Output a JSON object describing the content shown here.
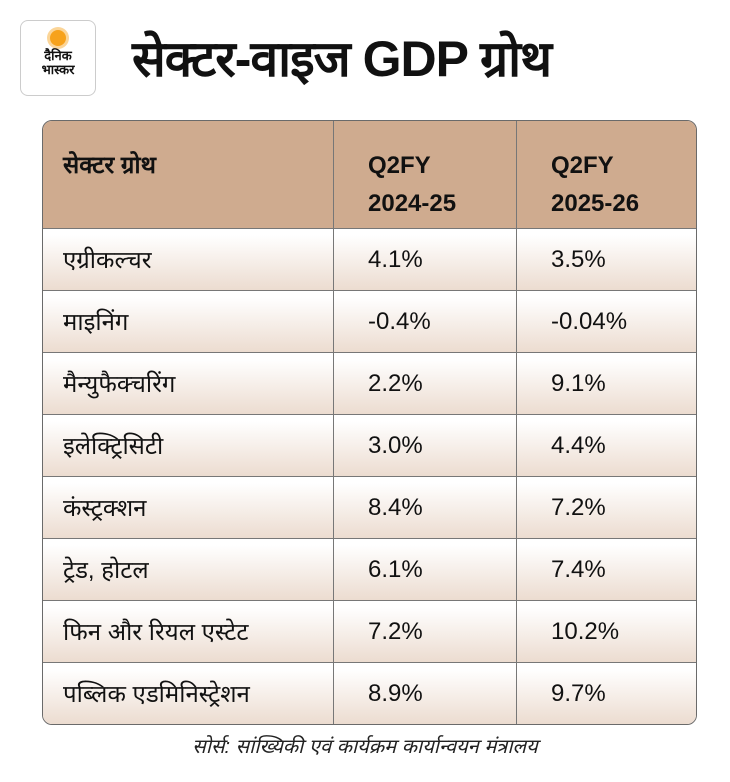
{
  "brand": {
    "logo_line1": "दैनिक",
    "logo_line2": "भास्कर",
    "accent": "#f7a21b"
  },
  "title": "सेक्टर-वाइज GDP ग्रोथ",
  "chart_data": {
    "type": "table",
    "title": "सेक्टर-वाइज GDP ग्रोथ",
    "columns": [
      {
        "line1": "सेक्टर ग्रोथ",
        "line2": ""
      },
      {
        "line1": "Q2FY",
        "line2": "2024-25"
      },
      {
        "line1": "Q2FY",
        "line2": "2025-26"
      }
    ],
    "rows": [
      {
        "sector": "एग्रीकल्चर",
        "fy25": "4.1%",
        "fy26": "3.5%"
      },
      {
        "sector": "माइनिंग",
        "fy25": "-0.4%",
        "fy26": "-0.04%"
      },
      {
        "sector": "मैन्युफैक्चरिंग",
        "fy25": "2.2%",
        "fy26": "9.1%"
      },
      {
        "sector": "इलेक्ट्रिसिटी",
        "fy25": "3.0%",
        "fy26": "4.4%"
      },
      {
        "sector": "कंस्ट्रक्शन",
        "fy25": "8.4%",
        "fy26": "7.2%"
      },
      {
        "sector": "ट्रेड, होटल",
        "fy25": "6.1%",
        "fy26": "7.4%"
      },
      {
        "sector": "फिन और रियल एस्टेट",
        "fy25": "7.2%",
        "fy26": "10.2%"
      },
      {
        "sector": "पब्लिक एडमिनिस्ट्रेशन",
        "fy25": "8.9%",
        "fy26": "9.7%"
      }
    ],
    "header_color": "#cfab8f"
  },
  "source": "सोर्स: सांख्यिकी एवं कार्यक्रम कार्यान्वयन मंत्रालय"
}
